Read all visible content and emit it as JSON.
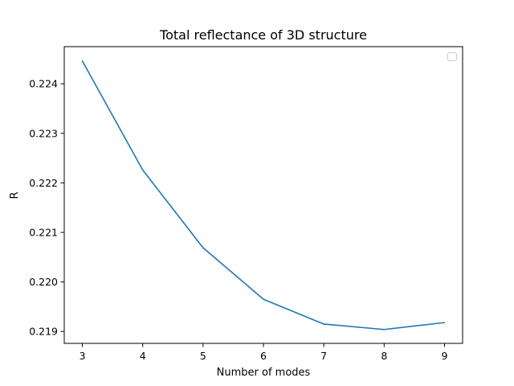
{
  "chart_data": {
    "type": "line",
    "title": "Total reflectance of 3D structure",
    "xlabel": "Number of modes",
    "ylabel": "R",
    "x": [
      3,
      4,
      5,
      6,
      7,
      8,
      9
    ],
    "series": [
      {
        "values": [
          0.22446,
          0.22226,
          0.22069,
          0.21965,
          0.21915,
          0.21904,
          0.21918
        ],
        "color": "#1f77b4"
      }
    ],
    "xlim": [
      2.7,
      9.3
    ],
    "ylim": [
      0.21876,
      0.22475
    ],
    "xticks": [
      3,
      4,
      5,
      6,
      7,
      8,
      9
    ],
    "yticks": [
      0.219,
      0.22,
      0.221,
      0.222,
      0.223,
      0.224
    ],
    "ytick_labels": [
      "0.219",
      "0.220",
      "0.221",
      "0.222",
      "0.223",
      "0.224"
    ],
    "legend": {
      "placement": "upper-right",
      "entries": []
    },
    "grid": false
  }
}
